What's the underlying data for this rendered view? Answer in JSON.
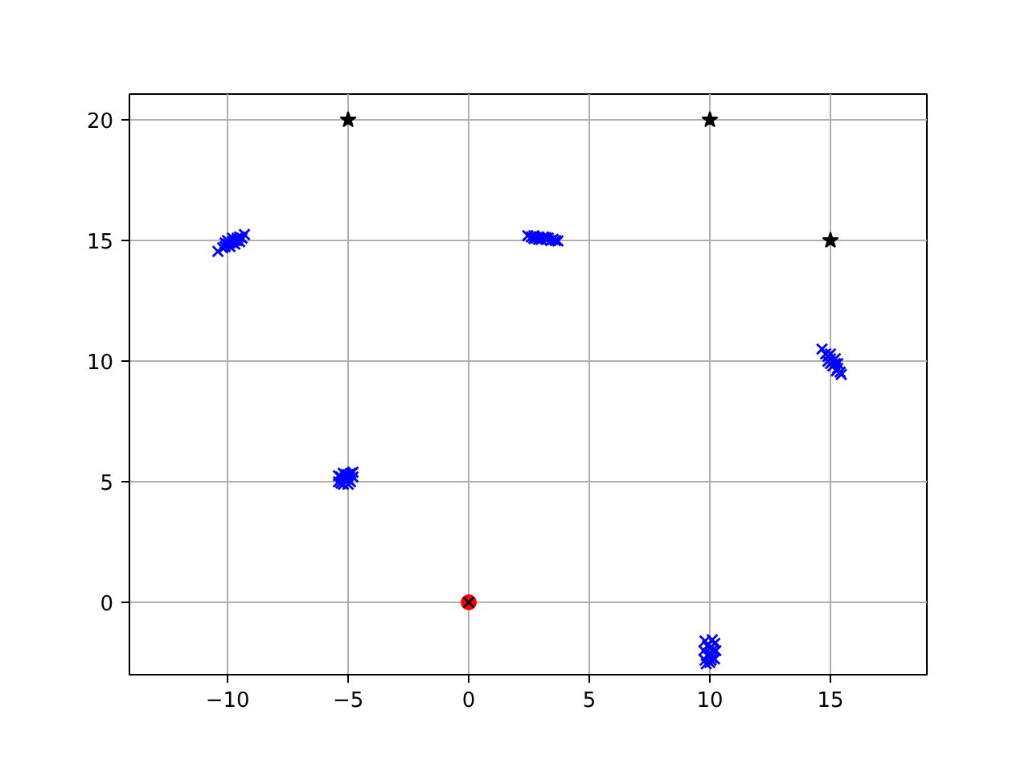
{
  "chart_data": {
    "type": "scatter",
    "xlim": [
      -14.07,
      19.0
    ],
    "ylim": [
      -3.0,
      21.07
    ],
    "xticks": [
      {
        "value": -10,
        "label": "−10"
      },
      {
        "value": -5,
        "label": "−5"
      },
      0,
      5,
      10,
      15
    ],
    "yticks": [
      0,
      5,
      10,
      15,
      20
    ],
    "grid": true,
    "series": [
      {
        "color": "#0000ff",
        "marker": "cross",
        "x": [
          -10.4,
          -10.2,
          -10.1,
          -10.0,
          -9.9,
          -9.8,
          -9.7,
          -9.6,
          -9.5,
          -9.3,
          -10.1,
          -9.9,
          -9.7,
          -9.6,
          -9.8,
          -10.0,
          -9.5,
          -9.4,
          -5.4,
          -5.3,
          -5.2,
          -5.1,
          -5.0,
          -4.9,
          -4.8,
          -5.2,
          -4.9,
          -5.4,
          -5.0,
          -5.3,
          -4.8,
          -5.1,
          -5.0,
          2.45,
          2.6,
          2.7,
          2.8,
          2.9,
          3.0,
          3.1,
          3.2,
          3.3,
          3.4,
          3.5,
          3.7,
          2.9,
          3.2,
          2.7,
          3.6,
          14.65,
          14.8,
          14.9,
          15.0,
          15.1,
          15.2,
          15.3,
          15.4,
          15.45,
          15.0,
          15.2,
          14.9,
          15.1,
          15.3,
          15.0,
          15.25,
          9.8,
          10.1,
          10.2,
          9.9,
          10.0,
          9.75,
          10.25,
          10.0,
          9.9,
          10.1,
          9.8,
          10.2,
          10.0,
          9.85,
          10.15,
          10.05
        ],
        "values": [
          14.55,
          14.7,
          14.75,
          14.85,
          14.9,
          14.95,
          15.0,
          15.1,
          15.15,
          15.25,
          14.9,
          14.75,
          14.85,
          15.0,
          15.1,
          15.0,
          14.95,
          15.1,
          5.0,
          5.2,
          4.9,
          5.1,
          5.3,
          5.0,
          5.2,
          5.35,
          5.35,
          5.25,
          4.9,
          4.95,
          5.4,
          5.3,
          5.1,
          15.2,
          15.15,
          15.2,
          15.1,
          15.15,
          15.05,
          15.15,
          15.05,
          15.1,
          15.0,
          15.05,
          14.98,
          15.05,
          15.12,
          15.08,
          15.0,
          10.5,
          10.3,
          10.2,
          10.1,
          10.0,
          9.9,
          9.7,
          9.55,
          9.45,
          9.9,
          10.1,
          10.0,
          9.8,
          9.9,
          10.3,
          9.6,
          -1.6,
          -1.55,
          -1.7,
          -1.8,
          -1.9,
          -2.0,
          -2.0,
          -2.1,
          -2.2,
          -2.3,
          -2.4,
          -2.35,
          -2.5,
          -2.55,
          -1.95,
          -2.4
        ]
      },
      {
        "color": "#000000",
        "marker": "star",
        "x": [
          -5,
          10,
          15
        ],
        "values": [
          20,
          20,
          15
        ]
      },
      {
        "color": "#ff0000",
        "marker": "circle",
        "x": [
          0
        ],
        "values": [
          0
        ]
      },
      {
        "color": "#000000",
        "marker": "cross",
        "x": [
          0
        ],
        "values": [
          0
        ]
      }
    ]
  }
}
